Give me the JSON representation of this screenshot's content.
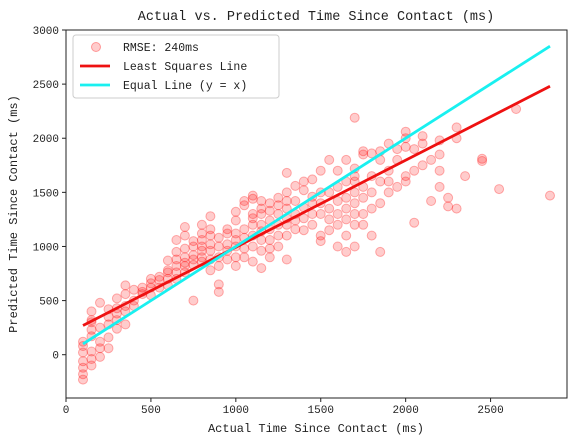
{
  "chart_data": {
    "type": "scatter",
    "title": "Actual vs. Predicted Time Since Contact (ms)",
    "xlabel": "Actual Time Since Contact (ms)",
    "ylabel": "Predicted Time Since Contact (ms)",
    "xlim": [
      0,
      2950
    ],
    "ylim": [
      -400,
      3000
    ],
    "xticks": [
      0,
      500,
      1000,
      1500,
      2000,
      2500
    ],
    "yticks": [
      0,
      500,
      1000,
      1500,
      2000,
      2500,
      3000
    ],
    "grid": false,
    "legend_position": "top-left",
    "colors": {
      "scatter": "#ff0000",
      "least_squares": "#ee1111",
      "equal_line": "#19f0f0"
    },
    "series": [
      {
        "name": "RMSE: 240ms",
        "kind": "scatter",
        "points": [
          [
            100,
            -230
          ],
          [
            100,
            -180
          ],
          [
            100,
            -120
          ],
          [
            100,
            -60
          ],
          [
            100,
            20
          ],
          [
            100,
            120
          ],
          [
            100,
            80
          ],
          [
            150,
            -100
          ],
          [
            150,
            -40
          ],
          [
            150,
            30
          ],
          [
            150,
            170
          ],
          [
            150,
            230
          ],
          [
            150,
            300
          ],
          [
            150,
            320
          ],
          [
            150,
            400
          ],
          [
            200,
            480
          ],
          [
            200,
            250
          ],
          [
            200,
            120
          ],
          [
            200,
            60
          ],
          [
            200,
            -20
          ],
          [
            250,
            60
          ],
          [
            250,
            160
          ],
          [
            250,
            280
          ],
          [
            250,
            350
          ],
          [
            250,
            420
          ],
          [
            300,
            240
          ],
          [
            300,
            320
          ],
          [
            300,
            380
          ],
          [
            300,
            430
          ],
          [
            300,
            520
          ],
          [
            350,
            280
          ],
          [
            350,
            400
          ],
          [
            350,
            450
          ],
          [
            350,
            560
          ],
          [
            350,
            640
          ],
          [
            400,
            450
          ],
          [
            400,
            500
          ],
          [
            400,
            600
          ],
          [
            450,
            560
          ],
          [
            450,
            620
          ],
          [
            450,
            580
          ],
          [
            500,
            550
          ],
          [
            500,
            620
          ],
          [
            500,
            660
          ],
          [
            500,
            700
          ],
          [
            550,
            620
          ],
          [
            550,
            690
          ],
          [
            550,
            720
          ],
          [
            600,
            640
          ],
          [
            600,
            700
          ],
          [
            600,
            760
          ],
          [
            600,
            780
          ],
          [
            600,
            870
          ],
          [
            650,
            700
          ],
          [
            650,
            760
          ],
          [
            650,
            820
          ],
          [
            650,
            880
          ],
          [
            650,
            950
          ],
          [
            650,
            1060
          ],
          [
            700,
            760
          ],
          [
            700,
            820
          ],
          [
            700,
            850
          ],
          [
            700,
            900
          ],
          [
            700,
            980
          ],
          [
            700,
            1100
          ],
          [
            700,
            1180
          ],
          [
            750,
            830
          ],
          [
            750,
            880
          ],
          [
            750,
            920
          ],
          [
            750,
            1000
          ],
          [
            750,
            1050
          ],
          [
            750,
            500
          ],
          [
            800,
            860
          ],
          [
            800,
            900
          ],
          [
            800,
            960
          ],
          [
            800,
            1000
          ],
          [
            800,
            1060
          ],
          [
            800,
            1120
          ],
          [
            800,
            1200
          ],
          [
            850,
            780
          ],
          [
            850,
            880
          ],
          [
            850,
            960
          ],
          [
            850,
            1020
          ],
          [
            850,
            1100
          ],
          [
            850,
            1160
          ],
          [
            850,
            1280
          ],
          [
            900,
            820
          ],
          [
            900,
            900
          ],
          [
            900,
            1000
          ],
          [
            900,
            1080
          ],
          [
            900,
            650
          ],
          [
            900,
            580
          ],
          [
            950,
            880
          ],
          [
            950,
            960
          ],
          [
            950,
            1020
          ],
          [
            950,
            1120
          ],
          [
            950,
            1160
          ],
          [
            1000,
            820
          ],
          [
            1000,
            900
          ],
          [
            1000,
            1000
          ],
          [
            1000,
            1060
          ],
          [
            1000,
            1120
          ],
          [
            1000,
            1240
          ],
          [
            1000,
            1320
          ],
          [
            1050,
            900
          ],
          [
            1050,
            980
          ],
          [
            1050,
            1080
          ],
          [
            1050,
            1160
          ],
          [
            1050,
            1380
          ],
          [
            1050,
            1420
          ],
          [
            1100,
            860
          ],
          [
            1100,
            1000
          ],
          [
            1100,
            1100
          ],
          [
            1100,
            1200
          ],
          [
            1100,
            1260
          ],
          [
            1100,
            1300
          ],
          [
            1100,
            1440
          ],
          [
            1100,
            1470
          ],
          [
            1150,
            800
          ],
          [
            1150,
            960
          ],
          [
            1150,
            1060
          ],
          [
            1150,
            1140
          ],
          [
            1150,
            1200
          ],
          [
            1150,
            1300
          ],
          [
            1150,
            1350
          ],
          [
            1150,
            1420
          ],
          [
            1200,
            900
          ],
          [
            1200,
            980
          ],
          [
            1200,
            1060
          ],
          [
            1200,
            1160
          ],
          [
            1200,
            1240
          ],
          [
            1200,
            1330
          ],
          [
            1200,
            1400
          ],
          [
            1250,
            1000
          ],
          [
            1250,
            1100
          ],
          [
            1250,
            1200
          ],
          [
            1250,
            1300
          ],
          [
            1250,
            1380
          ],
          [
            1250,
            1450
          ],
          [
            1300,
            880
          ],
          [
            1300,
            1100
          ],
          [
            1300,
            1200
          ],
          [
            1300,
            1260
          ],
          [
            1300,
            1350
          ],
          [
            1300,
            1420
          ],
          [
            1300,
            1500
          ],
          [
            1300,
            1680
          ],
          [
            1350,
            1160
          ],
          [
            1350,
            1240
          ],
          [
            1350,
            1300
          ],
          [
            1350,
            1420
          ],
          [
            1350,
            1560
          ],
          [
            1400,
            1150
          ],
          [
            1400,
            1260
          ],
          [
            1400,
            1360
          ],
          [
            1400,
            1520
          ],
          [
            1400,
            1600
          ],
          [
            1450,
            1200
          ],
          [
            1450,
            1300
          ],
          [
            1450,
            1400
          ],
          [
            1450,
            1460
          ],
          [
            1450,
            1620
          ],
          [
            1500,
            1050
          ],
          [
            1500,
            1100
          ],
          [
            1500,
            1300
          ],
          [
            1500,
            1400
          ],
          [
            1500,
            1500
          ],
          [
            1500,
            1700
          ],
          [
            1550,
            1150
          ],
          [
            1550,
            1250
          ],
          [
            1550,
            1350
          ],
          [
            1550,
            1500
          ],
          [
            1550,
            1800
          ],
          [
            1600,
            1000
          ],
          [
            1600,
            1200
          ],
          [
            1600,
            1300
          ],
          [
            1600,
            1420
          ],
          [
            1600,
            1550
          ],
          [
            1600,
            1700
          ],
          [
            1650,
            950
          ],
          [
            1650,
            1100
          ],
          [
            1650,
            1250
          ],
          [
            1650,
            1350
          ],
          [
            1650,
            1450
          ],
          [
            1650,
            1600
          ],
          [
            1650,
            1800
          ],
          [
            1700,
            1000
          ],
          [
            1700,
            1200
          ],
          [
            1700,
            1300
          ],
          [
            1700,
            1400
          ],
          [
            1700,
            1500
          ],
          [
            1700,
            1600
          ],
          [
            1700,
            1650
          ],
          [
            1700,
            1720
          ],
          [
            1700,
            2190
          ],
          [
            1750,
            1200
          ],
          [
            1750,
            1300
          ],
          [
            1750,
            1450
          ],
          [
            1750,
            1550
          ],
          [
            1750,
            1850
          ],
          [
            1750,
            1880
          ],
          [
            1800,
            1100
          ],
          [
            1800,
            1350
          ],
          [
            1800,
            1500
          ],
          [
            1800,
            1650
          ],
          [
            1800,
            1860
          ],
          [
            1850,
            950
          ],
          [
            1850,
            1400
          ],
          [
            1850,
            1600
          ],
          [
            1850,
            1800
          ],
          [
            1850,
            1880
          ],
          [
            1900,
            1500
          ],
          [
            1900,
            1600
          ],
          [
            1900,
            1700
          ],
          [
            1900,
            1950
          ],
          [
            1950,
            1550
          ],
          [
            1950,
            1800
          ],
          [
            1950,
            1900
          ],
          [
            2000,
            1600
          ],
          [
            2000,
            1650
          ],
          [
            2000,
            1920
          ],
          [
            2000,
            2000
          ],
          [
            2000,
            2060
          ],
          [
            2050,
            1220
          ],
          [
            2050,
            1700
          ],
          [
            2050,
            1900
          ],
          [
            2100,
            1750
          ],
          [
            2100,
            1950
          ],
          [
            2100,
            2020
          ],
          [
            2150,
            1420
          ],
          [
            2150,
            1800
          ],
          [
            2200,
            1550
          ],
          [
            2200,
            1700
          ],
          [
            2200,
            1850
          ],
          [
            2200,
            1980
          ],
          [
            2250,
            1370
          ],
          [
            2250,
            1450
          ],
          [
            2300,
            1350
          ],
          [
            2300,
            2000
          ],
          [
            2300,
            2100
          ],
          [
            2350,
            1650
          ],
          [
            2450,
            1790
          ],
          [
            2450,
            1810
          ],
          [
            2550,
            1530
          ],
          [
            2650,
            2270
          ],
          [
            2850,
            1470
          ]
        ]
      },
      {
        "name": "Least Squares Line",
        "kind": "line",
        "x": [
          100,
          2850
        ],
        "y": [
          270,
          2480
        ]
      },
      {
        "name": "Equal Line (y = x)",
        "kind": "line",
        "x": [
          100,
          2850
        ],
        "y": [
          100,
          2850
        ]
      }
    ]
  }
}
